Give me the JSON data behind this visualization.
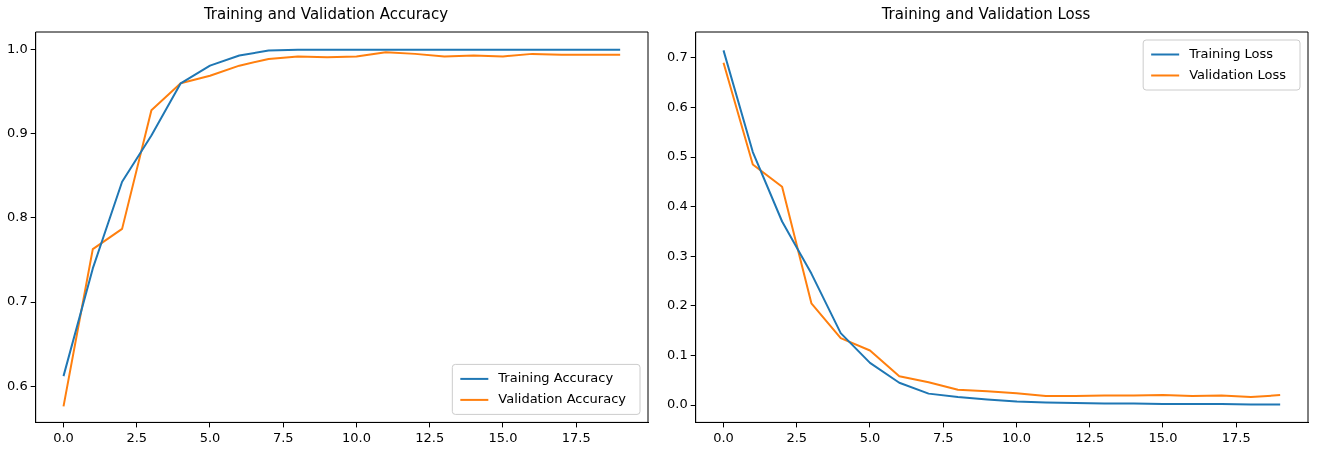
{
  "chart_data": [
    {
      "type": "line",
      "title": "Training and Validation Accuracy",
      "x": [
        0,
        1,
        2,
        3,
        4,
        5,
        6,
        7,
        8,
        9,
        10,
        11,
        12,
        13,
        14,
        15,
        16,
        17,
        18,
        19
      ],
      "series": [
        {
          "name": "Training Accuracy",
          "color": "#1f77b4",
          "values": [
            0.612,
            0.74,
            0.843,
            0.898,
            0.96,
            0.981,
            0.993,
            0.999,
            1.0,
            1.0,
            1.0,
            1.0,
            1.0,
            1.0,
            1.0,
            1.0,
            1.0,
            1.0,
            1.0,
            1.0
          ]
        },
        {
          "name": "Validation Accuracy",
          "color": "#ff7f0e",
          "values": [
            0.576,
            0.763,
            0.787,
            0.928,
            0.96,
            0.969,
            0.981,
            0.989,
            0.992,
            0.991,
            0.992,
            0.997,
            0.995,
            0.992,
            0.993,
            0.992,
            0.995,
            0.994,
            0.994,
            0.994
          ]
        }
      ],
      "xlim": [
        -0.95,
        19.95
      ],
      "ylim": [
        0.557,
        1.021
      ],
      "xticks": [
        {
          "value": 0,
          "label": "0.0"
        },
        {
          "value": 2.5,
          "label": "2.5"
        },
        {
          "value": 5,
          "label": "5.0"
        },
        {
          "value": 7.5,
          "label": "7.5"
        },
        {
          "value": 10,
          "label": "10.0"
        },
        {
          "value": 12.5,
          "label": "12.5"
        },
        {
          "value": 15,
          "label": "15.0"
        },
        {
          "value": 17.5,
          "label": "17.5"
        }
      ],
      "yticks": [
        0.6,
        0.7,
        0.8,
        0.9,
        {
          "value": 1.0,
          "label": "1.0"
        }
      ],
      "grid": false,
      "legend": "bottom right",
      "marker": "none",
      "line_style": "solid"
    },
    {
      "type": "line",
      "title": "Training and Validation Loss",
      "x": [
        0,
        1,
        2,
        3,
        4,
        5,
        6,
        7,
        8,
        9,
        10,
        11,
        12,
        13,
        14,
        15,
        16,
        17,
        18,
        19
      ],
      "series": [
        {
          "name": "Training Loss",
          "color": "#1f77b4",
          "values": [
            0.715,
            0.51,
            0.37,
            0.265,
            0.145,
            0.085,
            0.045,
            0.023,
            0.016,
            0.011,
            0.007,
            0.005,
            0.004,
            0.003,
            0.003,
            0.002,
            0.002,
            0.002,
            0.001,
            0.001
          ]
        },
        {
          "name": "Validation Loss",
          "color": "#ff7f0e",
          "values": [
            0.69,
            0.485,
            0.44,
            0.205,
            0.135,
            0.11,
            0.058,
            0.046,
            0.031,
            0.028,
            0.024,
            0.018,
            0.018,
            0.019,
            0.019,
            0.02,
            0.018,
            0.019,
            0.016,
            0.02
          ]
        }
      ],
      "xlim": [
        -0.95,
        19.95
      ],
      "ylim": [
        -0.035,
        0.752
      ],
      "xticks": [
        {
          "value": 0,
          "label": "0.0"
        },
        {
          "value": 2.5,
          "label": "2.5"
        },
        {
          "value": 5,
          "label": "5.0"
        },
        {
          "value": 7.5,
          "label": "7.5"
        },
        {
          "value": 10,
          "label": "10.0"
        },
        {
          "value": 12.5,
          "label": "12.5"
        },
        {
          "value": 15,
          "label": "15.0"
        },
        {
          "value": 17.5,
          "label": "17.5"
        }
      ],
      "yticks": [
        {
          "value": 0,
          "label": "0.0"
        },
        0.1,
        0.2,
        0.3,
        0.4,
        0.5,
        0.6,
        0.7
      ],
      "grid": false,
      "legend": "top right",
      "marker": "none",
      "line_style": "solid"
    }
  ]
}
